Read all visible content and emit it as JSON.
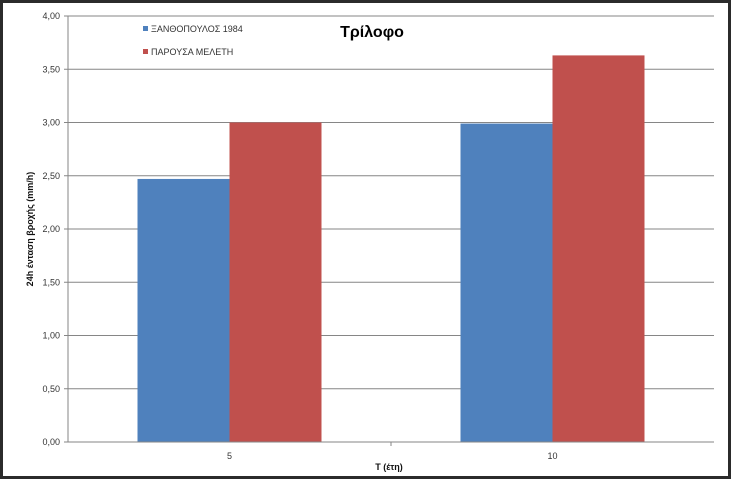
{
  "chart_data": {
    "type": "bar",
    "title": "Τρίλοφο",
    "xlabel": "T (έτη)",
    "ylabel": "24h ένταση βροχής (mm/h)",
    "categories": [
      "5",
      "10"
    ],
    "series": [
      {
        "name": "ΞΑΝΘΟΠΟΥΛΟΣ 1984",
        "values": [
          2.47,
          2.99
        ],
        "color": "#4f81bd"
      },
      {
        "name": "ΠΑΡΟΥΣΑ ΜΕΛΕΤΗ",
        "values": [
          3.0,
          3.63
        ],
        "color": "#c0504d"
      }
    ],
    "ylim": [
      0,
      4
    ],
    "yticks": [
      "0,00",
      "0,50",
      "1,00",
      "1,50",
      "2,00",
      "2,50",
      "3,00",
      "3,50",
      "4,00"
    ],
    "grid": true,
    "legend_position": "top-left"
  }
}
